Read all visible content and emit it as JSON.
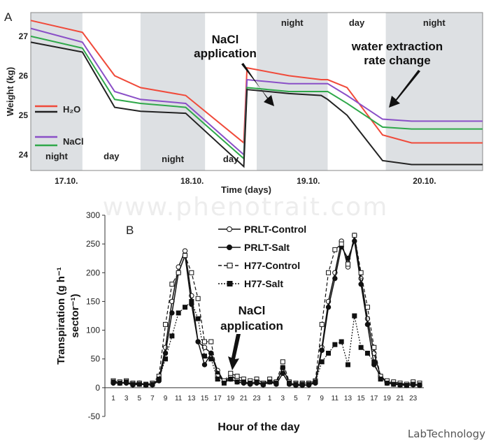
{
  "watermark": "www.phenotrait.com",
  "credit": "LabTechnology",
  "chart_data": [
    {
      "type": "line",
      "panel_label": "A",
      "xlabel": "Time (days)",
      "ylabel": "Weight (kg)",
      "x_ticks": [
        "17.10.",
        "18.10.",
        "19.10.",
        "20.10."
      ],
      "y_ticks": [
        24,
        25,
        26,
        27
      ],
      "ylim": [
        23.6,
        27.6
      ],
      "bands": [
        {
          "label": "night",
          "shaded": true
        },
        {
          "label": "day",
          "shaded": false
        },
        {
          "label": "night",
          "shaded": true
        },
        {
          "label": "day",
          "shaded": false
        },
        {
          "label": "night",
          "shaded": true
        },
        {
          "label": "day",
          "shaded": false
        },
        {
          "label": "night",
          "shaded": true
        }
      ],
      "legend": {
        "placement": "left",
        "entries": [
          {
            "label": "H₂O",
            "colors": [
              "#f04a3a",
              "#222222"
            ]
          },
          {
            "label": "NaCl",
            "colors": [
              "#8a4fc7",
              "#2fa84a"
            ]
          }
        ]
      },
      "annotations": [
        "NaCl application",
        "water extraction rate change"
      ],
      "series": [
        {
          "color": "#f04a3a",
          "x": [
            0,
            1.6,
            2.6,
            3.4,
            4.8,
            6.6,
            6.7,
            8.0,
            9.0,
            9.2,
            9.8,
            10.9,
            11.8,
            14
          ],
          "y": [
            27.4,
            27.1,
            26.0,
            25.7,
            25.5,
            24.3,
            26.2,
            26.0,
            25.9,
            25.9,
            25.7,
            24.5,
            24.3,
            24.3
          ]
        },
        {
          "color": "#8a4fc7",
          "x": [
            0,
            1.6,
            2.6,
            3.4,
            4.8,
            6.6,
            6.7,
            8.0,
            9.0,
            9.2,
            9.8,
            10.9,
            11.8,
            14
          ],
          "y": [
            27.2,
            26.85,
            25.6,
            25.4,
            25.3,
            24.0,
            25.9,
            25.8,
            25.8,
            25.8,
            25.5,
            24.9,
            24.85,
            24.85
          ]
        },
        {
          "color": "#2fa84a",
          "x": [
            0,
            1.6,
            2.6,
            3.4,
            4.8,
            6.6,
            6.7,
            8.0,
            9.0,
            9.2,
            9.8,
            10.9,
            11.8,
            14
          ],
          "y": [
            27.0,
            26.7,
            25.4,
            25.3,
            25.2,
            23.9,
            25.7,
            25.6,
            25.6,
            25.6,
            25.3,
            24.7,
            24.65,
            24.65
          ]
        },
        {
          "color": "#222222",
          "x": [
            0,
            1.6,
            2.6,
            3.4,
            4.8,
            6.6,
            6.7,
            8.0,
            9.0,
            9.2,
            9.8,
            10.9,
            11.8,
            14
          ],
          "y": [
            26.85,
            26.6,
            25.2,
            25.1,
            25.05,
            23.7,
            25.65,
            25.55,
            25.5,
            25.4,
            25.0,
            23.85,
            23.75,
            23.75
          ]
        }
      ]
    },
    {
      "type": "line",
      "panel_label": "B",
      "xlabel": "Hour of the day",
      "ylabel": "Transpiration (g h⁻¹ sector⁻¹)",
      "x_ticks": [
        "1",
        "3",
        "5",
        "7",
        "9",
        "11",
        "13",
        "15",
        "17",
        "19",
        "21",
        "23",
        "1",
        "3",
        "5",
        "7",
        "9",
        "11",
        "13",
        "15",
        "17",
        "19",
        "21",
        "23"
      ],
      "y_ticks": [
        -50,
        0,
        50,
        100,
        150,
        200,
        250,
        300
      ],
      "ylim": [
        -50,
        300
      ],
      "annotations": [
        "NaCl application"
      ],
      "series": [
        {
          "name": "PRLT-Control",
          "marker": "open-circle",
          "dash": "solid",
          "values": [
            10,
            8,
            10,
            5,
            8,
            5,
            6,
            15,
            70,
            150,
            210,
            238,
            160,
            80,
            70,
            60,
            30,
            10,
            20,
            15,
            10,
            8,
            10,
            6,
            12,
            8,
            35,
            8,
            5,
            5,
            5,
            10,
            70,
            150,
            200,
            255,
            210,
            265,
            190,
            120,
            60,
            20,
            10,
            8,
            6,
            5,
            6,
            5
          ]
        },
        {
          "name": "PRLT-Salt",
          "marker": "filled-circle",
          "dash": "solid",
          "values": [
            8,
            8,
            8,
            5,
            6,
            5,
            5,
            12,
            60,
            130,
            200,
            230,
            145,
            80,
            40,
            60,
            25,
            10,
            15,
            10,
            8,
            6,
            8,
            5,
            10,
            6,
            25,
            6,
            4,
            4,
            5,
            8,
            65,
            140,
            190,
            245,
            225,
            255,
            180,
            110,
            40,
            20,
            8,
            6,
            5,
            4,
            5,
            4
          ]
        },
        {
          "name": "H77-Control",
          "marker": "open-square",
          "dash": "dashed",
          "values": [
            12,
            10,
            12,
            8,
            8,
            6,
            8,
            20,
            110,
            180,
            200,
            230,
            200,
            155,
            80,
            80,
            20,
            12,
            25,
            20,
            15,
            12,
            15,
            8,
            15,
            10,
            45,
            10,
            8,
            8,
            8,
            12,
            110,
            200,
            240,
            250,
            215,
            265,
            200,
            140,
            70,
            20,
            12,
            10,
            8,
            6,
            10,
            8
          ]
        },
        {
          "name": "H77-Salt",
          "marker": "filled-square",
          "dash": "dotted",
          "values": [
            10,
            8,
            10,
            6,
            6,
            5,
            6,
            15,
            50,
            90,
            130,
            140,
            150,
            120,
            55,
            50,
            15,
            8,
            15,
            10,
            10,
            8,
            10,
            6,
            10,
            8,
            35,
            8,
            6,
            6,
            6,
            10,
            45,
            60,
            75,
            80,
            40,
            125,
            70,
            60,
            45,
            15,
            8,
            6,
            5,
            4,
            6,
            5
          ]
        }
      ]
    }
  ]
}
